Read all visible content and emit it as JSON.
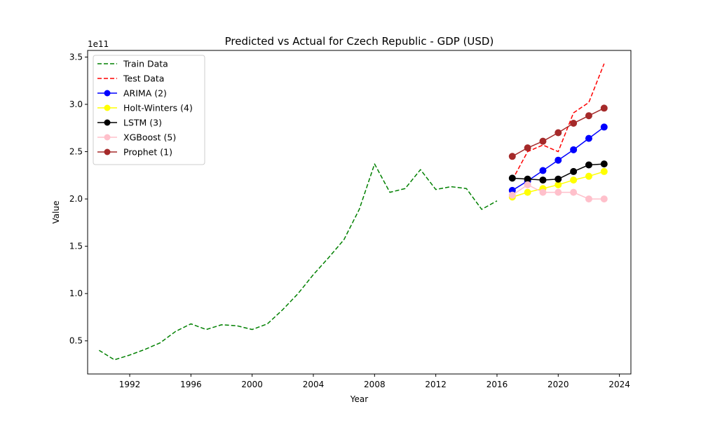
{
  "chart_data": {
    "type": "line",
    "title": "Predicted vs Actual for Czech Republic - GDP (USD)",
    "xlabel": "Year",
    "ylabel": "Value",
    "y_offset_label": "1e11",
    "y_scale": 100000000000,
    "xlim": [
      1989.25,
      2024.75
    ],
    "ylim": [
      0.15,
      3.57
    ],
    "x_ticks": [
      1992,
      1996,
      2000,
      2004,
      2008,
      2012,
      2016,
      2020,
      2024
    ],
    "y_ticks": [
      0.5,
      1.0,
      1.5,
      2.0,
      2.5,
      3.0,
      3.5
    ],
    "y_tick_labels": [
      "0.5",
      "1.0",
      "1.5",
      "2.0",
      "2.5",
      "3.0",
      "3.5"
    ],
    "grid": false,
    "legend_position": "upper-left",
    "series": [
      {
        "name": "Train Data",
        "style": "dashed",
        "marker": false,
        "color": "#008000",
        "x": [
          1990,
          1991,
          1992,
          1993,
          1994,
          1995,
          1996,
          1997,
          1998,
          1999,
          2000,
          2001,
          2002,
          2003,
          2004,
          2005,
          2006,
          2007,
          2008,
          2009,
          2010,
          2011,
          2012,
          2013,
          2014,
          2015,
          2016
        ],
        "y": [
          0.4,
          0.3,
          0.35,
          0.41,
          0.48,
          0.6,
          0.68,
          0.62,
          0.67,
          0.66,
          0.62,
          0.68,
          0.83,
          1.0,
          1.2,
          1.38,
          1.57,
          1.89,
          2.37,
          2.07,
          2.11,
          2.31,
          2.1,
          2.13,
          2.11,
          1.89,
          1.98
        ]
      },
      {
        "name": "Test Data",
        "style": "dashed",
        "marker": false,
        "color": "#ff0000",
        "x": [
          2017,
          2018,
          2019,
          2020,
          2021,
          2022,
          2023
        ],
        "y": [
          2.2,
          2.5,
          2.57,
          2.5,
          2.91,
          3.02,
          3.43
        ]
      },
      {
        "name": "ARIMA (2)",
        "style": "solid",
        "marker": true,
        "color": "#0000ff",
        "x": [
          2017,
          2018,
          2019,
          2020,
          2021,
          2022,
          2023
        ],
        "y": [
          2.09,
          2.19,
          2.3,
          2.41,
          2.52,
          2.64,
          2.76
        ]
      },
      {
        "name": "Holt-Winters (4)",
        "style": "solid",
        "marker": true,
        "color": "#ffff00",
        "x": [
          2017,
          2018,
          2019,
          2020,
          2021,
          2022,
          2023
        ],
        "y": [
          2.02,
          2.07,
          2.11,
          2.15,
          2.2,
          2.24,
          2.29
        ]
      },
      {
        "name": "LSTM (3)",
        "style": "solid",
        "marker": true,
        "color": "#000000",
        "x": [
          2017,
          2018,
          2019,
          2020,
          2021,
          2022,
          2023
        ],
        "y": [
          2.22,
          2.21,
          2.2,
          2.21,
          2.29,
          2.36,
          2.37
        ]
      },
      {
        "name": "XGBoost (5)",
        "style": "solid",
        "marker": true,
        "color": "#ffc0cb",
        "x": [
          2017,
          2018,
          2019,
          2020,
          2021,
          2022,
          2023
        ],
        "y": [
          2.04,
          2.15,
          2.07,
          2.07,
          2.07,
          2.0,
          2.0
        ]
      },
      {
        "name": "Prophet (1)",
        "style": "solid",
        "marker": true,
        "color": "#a52a2a",
        "x": [
          2017,
          2018,
          2019,
          2020,
          2021,
          2022,
          2023
        ],
        "y": [
          2.45,
          2.54,
          2.61,
          2.7,
          2.8,
          2.88,
          2.96
        ]
      }
    ]
  }
}
